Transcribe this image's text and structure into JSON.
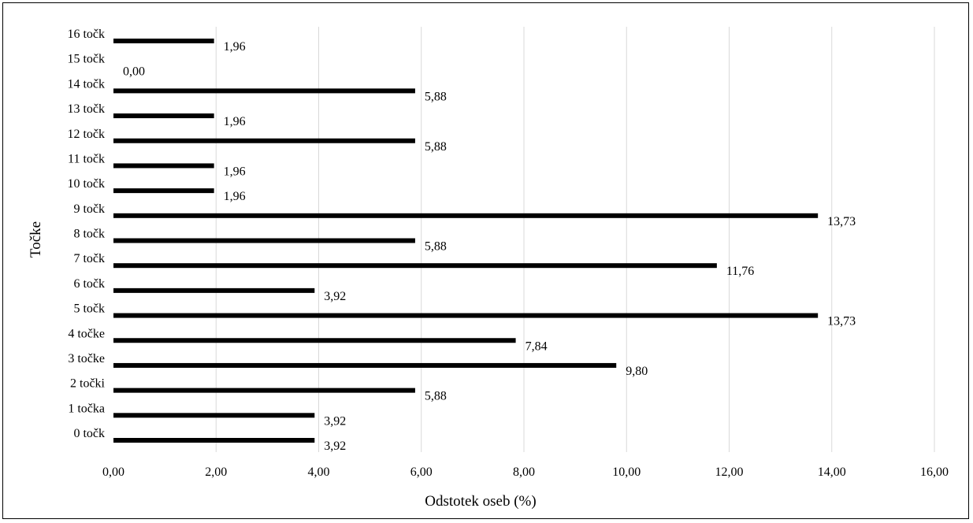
{
  "chart_data": {
    "type": "bar",
    "orientation": "horizontal",
    "categories": [
      "0 točk",
      "1 točka",
      "2 točki",
      "3 točke",
      "4 točke",
      "5 točk",
      "6 točk",
      "7 točk",
      "8 točk",
      "9 točk",
      "10 točk",
      "11 točk",
      "12 točk",
      "13 točk",
      "14 točk",
      "15 točk",
      "16 točk"
    ],
    "values": [
      3.92,
      3.92,
      5.88,
      9.8,
      7.84,
      13.73,
      3.92,
      11.76,
      5.88,
      13.73,
      1.96,
      1.96,
      5.88,
      1.96,
      5.88,
      0.0,
      1.96
    ],
    "data_labels": [
      "3,92",
      "3,92",
      "5,88",
      "9,80",
      "7,84",
      "13,73",
      "3,92",
      "11,76",
      "5,88",
      "13,73",
      "1,96",
      "1,96",
      "5,88",
      "1,96",
      "5,88",
      "0,00",
      "1,96"
    ],
    "xlabel": "Odstotek oseb (%)",
    "ylabel": "Točke",
    "xlim": [
      0,
      16
    ],
    "x_ticks": [
      0,
      2,
      4,
      6,
      8,
      10,
      12,
      14,
      16
    ],
    "x_tick_labels": [
      "0,00",
      "2,00",
      "4,00",
      "6,00",
      "8,00",
      "10,00",
      "12,00",
      "14,00",
      "16,00"
    ],
    "grid": "vertical",
    "legend": "none",
    "colors": {
      "bar": "#000000",
      "grid": "#d9d9d9",
      "border": "#000000"
    }
  }
}
